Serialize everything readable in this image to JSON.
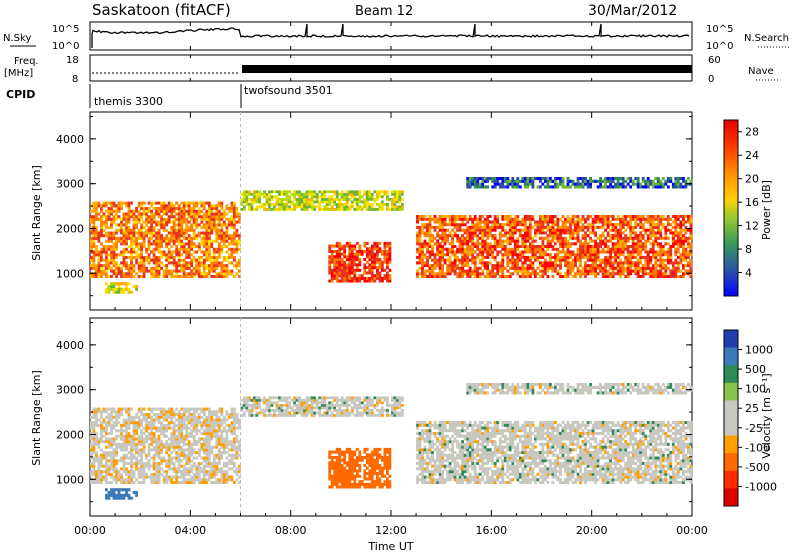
{
  "header": {
    "station": "Saskatoon (fitACF)",
    "beam": "Beam 12",
    "date": "30/Mar/2012"
  },
  "top_panels": {
    "noise_label": "N.Sky",
    "noise_left_ticks": [
      "10^5",
      "10^0"
    ],
    "noise_right_ticks": [
      "10^5",
      "10^0"
    ],
    "noise_search_label": "N.Search",
    "freq_label_1": "Freq.",
    "freq_label_2": "[MHz]",
    "freq_ticks": [
      "18",
      "8"
    ],
    "nave_label": "Nave",
    "nave_ticks": [
      "60",
      "0"
    ],
    "cpid_label": "CPID",
    "modes": [
      {
        "name": "themis 3300",
        "start_hour": 0
      },
      {
        "name": "twofsound 3501",
        "start_hour": 6
      }
    ]
  },
  "power_panel": {
    "ylabel": "Slant Range [km]",
    "yticks": [
      "4000",
      "3000",
      "2000",
      "1000"
    ],
    "colorbar_label": "Power [dB]",
    "colorbar_ticks": [
      "28",
      "24",
      "20",
      "16",
      "12",
      "8",
      "4"
    ],
    "colors": [
      "#ff0000",
      "#e8341c",
      "#ff7a00",
      "#ffae00",
      "#ffe000",
      "#b4d800",
      "#6ab43a",
      "#2e8b57",
      "#2c4aa8",
      "#0000ff"
    ]
  },
  "velocity_panel": {
    "ylabel": "Slant Range [km]",
    "yticks": [
      "4000",
      "3000",
      "2000",
      "1000"
    ],
    "colorbar_label": "Velocity [m s⁻¹]",
    "colorbar_ticks": [
      "1000",
      "500",
      "100",
      "25",
      "-25",
      "-100",
      "-500",
      "-1000"
    ],
    "colors": [
      "#1f3fb0",
      "#3c7ab8",
      "#2e8b57",
      "#8bc34a",
      "#c8c8c0",
      "#c8c8c0",
      "#ffa000",
      "#ff6a00",
      "#ff2a00",
      "#e00000"
    ]
  },
  "x_axis": {
    "ticks": [
      "00:00",
      "04:00",
      "08:00",
      "12:00",
      "16:00",
      "20:00",
      "00:00"
    ],
    "label": "Time UT"
  },
  "chart_data": {
    "type": "heatmap",
    "x_range_hours": [
      0,
      24
    ],
    "y_range_km": [
      180,
      4600
    ],
    "power_colorbar_range_db": [
      0,
      30
    ],
    "velocity_colorbar_range_ms": [
      -1000,
      1000
    ],
    "regions": [
      {
        "name": "main scatter band (early)",
        "t_start": 0.0,
        "t_end": 6.0,
        "range_start_km": 900,
        "range_end_km": 2600,
        "power_db": 22,
        "velocity_ms": -10
      },
      {
        "name": "scatter band (08-12 UT)",
        "t_start": 6.0,
        "t_end": 12.5,
        "range_start_km": 2400,
        "range_end_km": 2850,
        "power_db": 14,
        "velocity_ms": 0
      },
      {
        "name": "strong echo patch",
        "t_start": 9.5,
        "t_end": 12.0,
        "range_start_km": 800,
        "range_end_km": 1700,
        "power_db": 26,
        "velocity_ms": -300
      },
      {
        "name": "late band",
        "t_start": 13.0,
        "t_end": 24.0,
        "range_start_km": 900,
        "range_end_km": 2300,
        "power_db": 24,
        "velocity_ms": 0
      },
      {
        "name": "far band",
        "t_start": 15.0,
        "t_end": 24.0,
        "range_start_km": 2900,
        "range_end_km": 3150,
        "power_db": 6,
        "velocity_ms": 0
      },
      {
        "name": "low velocity patch",
        "t_start": 0.6,
        "t_end": 1.9,
        "range_start_km": 550,
        "range_end_km": 800,
        "power_db": 16,
        "velocity_ms": 200
      }
    ]
  }
}
